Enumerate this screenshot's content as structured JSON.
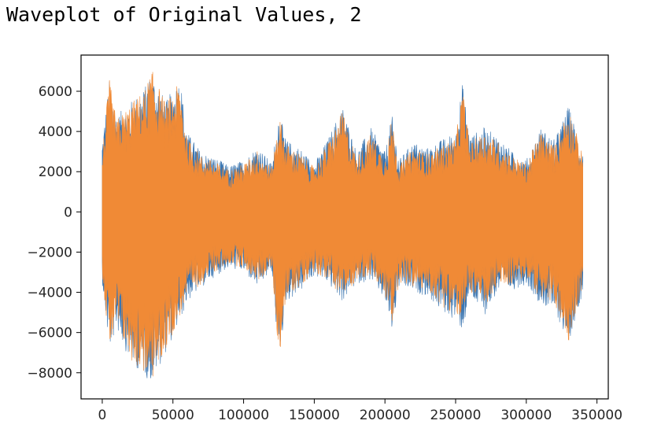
{
  "header": {
    "title": "Waveplot of Original Values, 2"
  },
  "chart_data": {
    "type": "area",
    "title": "",
    "xlabel": "",
    "ylabel": "",
    "xlim": [
      -15000,
      358000
    ],
    "ylim": [
      -9300,
      7800
    ],
    "x_ticks": [
      0,
      50000,
      100000,
      150000,
      200000,
      250000,
      300000,
      350000
    ],
    "x_tick_labels": [
      "0",
      "50000",
      "100000",
      "150000",
      "200000",
      "250000",
      "300000",
      "350000"
    ],
    "y_ticks": [
      6000,
      4000,
      2000,
      0,
      -2000,
      -4000,
      -6000,
      -8000
    ],
    "y_tick_labels": [
      "6000",
      "4000",
      "2000",
      "0",
      "−2000",
      "−4000",
      "−6000",
      "−8000"
    ],
    "grid": false,
    "legend": false,
    "series": [
      {
        "color": "#3a75b0",
        "envelope": {
          "x": [
            0,
            5000,
            10000,
            20000,
            30000,
            35000,
            45000,
            55000,
            60000,
            70000,
            80000,
            90000,
            100000,
            110000,
            120000,
            125000,
            130000,
            140000,
            150000,
            160000,
            170000,
            180000,
            190000,
            200000,
            205000,
            210000,
            220000,
            230000,
            240000,
            250000,
            255000,
            260000,
            270000,
            280000,
            290000,
            300000,
            310000,
            320000,
            330000,
            340000
          ],
          "upper": [
            3600,
            6600,
            4800,
            5500,
            6200,
            7000,
            5500,
            6800,
            4000,
            3000,
            2700,
            2300,
            2600,
            3300,
            2400,
            5000,
            3600,
            3200,
            2400,
            3700,
            5300,
            3000,
            4200,
            3000,
            4800,
            2600,
            3500,
            3200,
            3600,
            4000,
            6500,
            3800,
            4200,
            3800,
            3000,
            2600,
            4200,
            3600,
            5300,
            3000
          ],
          "lower": [
            -3500,
            -7000,
            -5800,
            -7500,
            -8200,
            -8500,
            -7000,
            -5500,
            -4500,
            -3800,
            -3200,
            -2800,
            -3000,
            -3800,
            -3000,
            -7500,
            -4500,
            -4000,
            -3200,
            -3600,
            -4500,
            -3600,
            -3400,
            -4500,
            -6000,
            -3800,
            -4000,
            -4200,
            -5000,
            -5400,
            -6000,
            -4200,
            -5200,
            -4000,
            -3900,
            -3600,
            -4600,
            -5000,
            -6500,
            -4000
          ]
        }
      },
      {
        "color": "#f08a36",
        "envelope": {
          "x": [
            0,
            5000,
            10000,
            20000,
            30000,
            35000,
            45000,
            55000,
            60000,
            70000,
            80000,
            90000,
            100000,
            110000,
            120000,
            125000,
            130000,
            140000,
            150000,
            160000,
            170000,
            180000,
            190000,
            200000,
            205000,
            210000,
            220000,
            230000,
            240000,
            250000,
            255000,
            260000,
            270000,
            280000,
            290000,
            300000,
            310000,
            320000,
            330000,
            340000
          ],
          "upper": [
            3000,
            6600,
            4600,
            5400,
            6100,
            7100,
            5400,
            6500,
            3700,
            2800,
            2500,
            2100,
            2400,
            3100,
            2200,
            4900,
            3400,
            2900,
            2200,
            3500,
            5000,
            2700,
            3900,
            2700,
            4700,
            2300,
            3200,
            2900,
            3300,
            3700,
            6200,
            3400,
            4000,
            3500,
            2800,
            2400,
            4000,
            3300,
            5300,
            2800
          ],
          "lower": [
            -3200,
            -6900,
            -5600,
            -7400,
            -8100,
            -8500,
            -6900,
            -5200,
            -4300,
            -3600,
            -3000,
            -2600,
            -2800,
            -3500,
            -2800,
            -7400,
            -4300,
            -3700,
            -3000,
            -3400,
            -4300,
            -3400,
            -3200,
            -4200,
            -5700,
            -3500,
            -3800,
            -3900,
            -4700,
            -5100,
            -5600,
            -3900,
            -4900,
            -3700,
            -3600,
            -3300,
            -4300,
            -4700,
            -6400,
            -3700
          ]
        }
      }
    ]
  }
}
